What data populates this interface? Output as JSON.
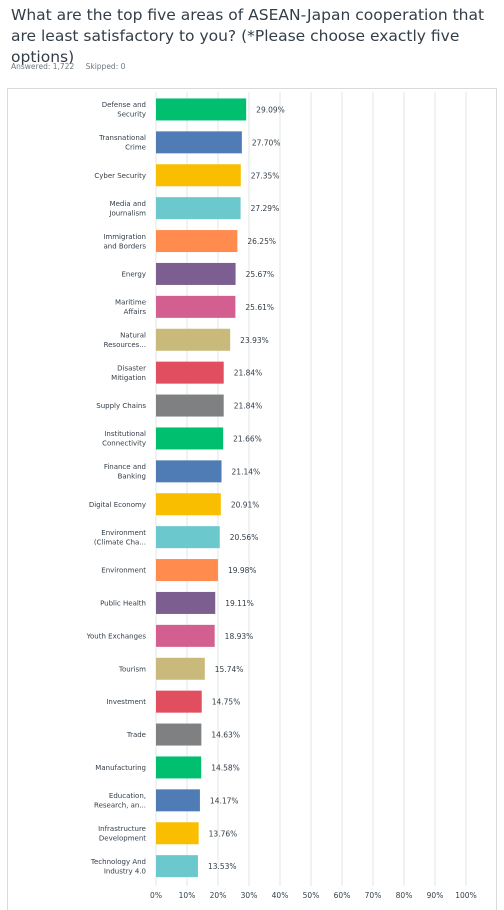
{
  "question": {
    "title": "What are the top five areas of ASEAN-Japan cooperation that are least satisfactory to you? (*Please choose exactly five options)",
    "answered": "Answered: 1,722",
    "skipped": "Skipped: 0"
  },
  "colors": {
    "palette": [
      "#00bf6f",
      "#507cb6",
      "#f9be00",
      "#6bc8cd",
      "#ff8b4f",
      "#7d5e90",
      "#d25f90",
      "#c9b97a",
      "#e04e5f",
      "#7e8082"
    ],
    "grid": "#e3e5e6",
    "text": "#333e48"
  },
  "chart_data": {
    "type": "bar",
    "orientation": "horizontal",
    "xlim": [
      0,
      100
    ],
    "grid": true,
    "x_ticks": [
      "0%",
      "10%",
      "20%",
      "30%",
      "40%",
      "50%",
      "60%",
      "70%",
      "80%",
      "90%",
      "100%"
    ],
    "categories": [
      [
        "Defense and",
        "Security"
      ],
      [
        "Transnational",
        "Crime"
      ],
      [
        "Cyber Security"
      ],
      [
        "Media and",
        "Journalism"
      ],
      [
        "Immigration",
        "and Borders"
      ],
      [
        "Energy"
      ],
      [
        "Maritime",
        "Affairs"
      ],
      [
        "Natural",
        "Resources..."
      ],
      [
        "Disaster",
        "Mitigation"
      ],
      [
        "Supply Chains"
      ],
      [
        "Institutional",
        "Connectivity"
      ],
      [
        "Finance and",
        "Banking"
      ],
      [
        "Digital Economy"
      ],
      [
        "Environment",
        "(Climate Cha..."
      ],
      [
        "Environment"
      ],
      [
        "Public Health"
      ],
      [
        "Youth Exchanges"
      ],
      [
        "Tourism"
      ],
      [
        "Investment"
      ],
      [
        "Trade"
      ],
      [
        "Manufacturing"
      ],
      [
        "Education,",
        "Research, an..."
      ],
      [
        "Infrastructure",
        "Development"
      ],
      [
        "Technology And",
        "Industry 4.0"
      ]
    ],
    "values": [
      29.09,
      27.7,
      27.35,
      27.29,
      26.25,
      25.67,
      25.61,
      23.93,
      21.84,
      21.84,
      21.66,
      21.14,
      20.91,
      20.56,
      19.98,
      19.11,
      18.93,
      15.74,
      14.75,
      14.63,
      14.58,
      14.17,
      13.76,
      13.53
    ],
    "value_labels": [
      "29.09%",
      "27.70%",
      "27.35%",
      "27.29%",
      "26.25%",
      "25.67%",
      "25.61%",
      "23.93%",
      "21.84%",
      "21.84%",
      "21.66%",
      "21.14%",
      "20.91%",
      "20.56%",
      "19.98%",
      "19.11%",
      "18.93%",
      "15.74%",
      "14.75%",
      "14.63%",
      "14.58%",
      "14.17%",
      "13.76%",
      "13.53%"
    ]
  }
}
